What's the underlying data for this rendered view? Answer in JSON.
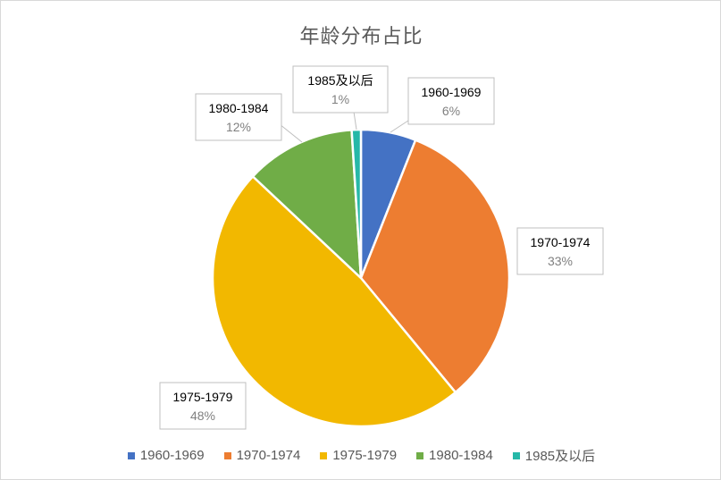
{
  "chart_data": {
    "type": "pie",
    "title": "年龄分布占比",
    "categories": [
      "1960-1969",
      "1970-1974",
      "1975-1979",
      "1980-1984",
      "1985及以后"
    ],
    "values": [
      6,
      33,
      48,
      12,
      1
    ],
    "data_labels": [
      "6%",
      "33%",
      "48%",
      "12%",
      "1%"
    ],
    "colors": [
      "#4472C4",
      "#ED7D31",
      "#F2B800",
      "#70AD47",
      "#26B8A8"
    ],
    "legend_position": "bottom",
    "start_angle_deg": 0,
    "direction": "clockwise"
  }
}
